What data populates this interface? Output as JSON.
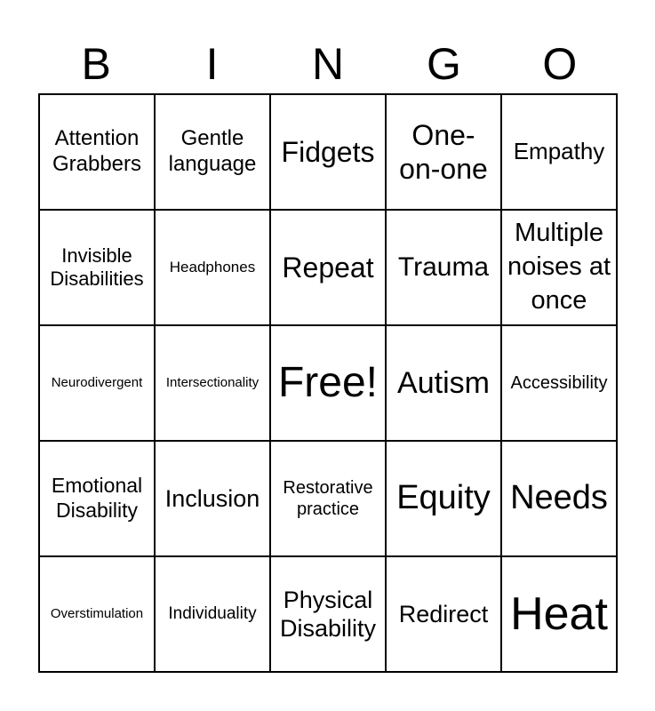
{
  "header": [
    "B",
    "I",
    "N",
    "G",
    "O"
  ],
  "cells": [
    "Attention Grabbers",
    "Gentle language",
    "Fidgets",
    "One-on-one",
    "Empathy",
    "Invisible Disabilities",
    "Headphones",
    "Repeat",
    "Trauma",
    "Multiple noises at once",
    "Neurodivergent",
    "Intersectionality",
    "Free!",
    "Autism",
    "Accessibility",
    "Emotional Disability",
    "Inclusion",
    "Restorative practice",
    "Equity",
    "Needs",
    "Overstimulation",
    "Individuality",
    "Physical Disability",
    "Redirect",
    "Heat"
  ]
}
